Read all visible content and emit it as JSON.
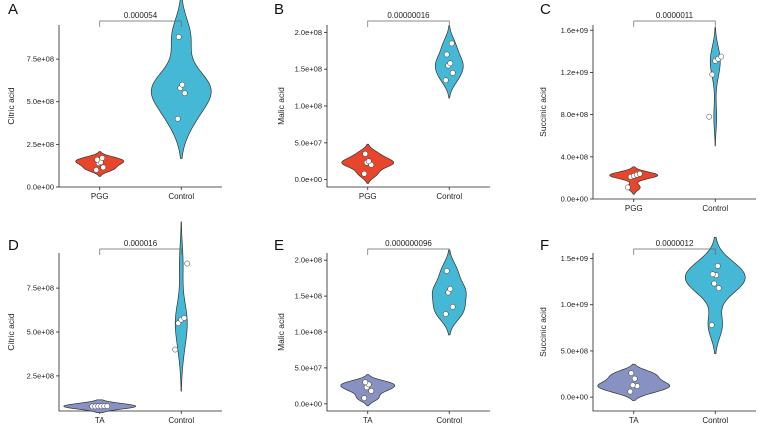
{
  "colors": {
    "PGG": "#e8452d",
    "TA": "#8791c2",
    "Control": "#45b8d6"
  },
  "chart_data": [
    {
      "panel": "A",
      "type": "violin",
      "ylabel": "Citric acid",
      "categories": [
        "PGG",
        "Control"
      ],
      "ylim": [
        0,
        950000000
      ],
      "yticks": [
        {
          "value": 0,
          "label": "0.0e+00"
        },
        {
          "value": 250000000,
          "label": "2.5e+08"
        },
        {
          "value": 500000000,
          "label": "5.0e+08"
        },
        {
          "value": 750000000,
          "label": "7.5e+08"
        }
      ],
      "pvalue": "0.000054",
      "series": [
        {
          "name": "PGG",
          "color": "#e8452d",
          "points": [
            100000000,
            115000000,
            140000000,
            145000000,
            160000000,
            170000000
          ]
        },
        {
          "name": "Control",
          "color": "#45b8d6",
          "points": [
            400000000,
            550000000,
            580000000,
            600000000,
            880000000
          ]
        }
      ]
    },
    {
      "panel": "B",
      "type": "violin",
      "ylabel": "Malic acid",
      "categories": [
        "PGG",
        "Control"
      ],
      "ylim": [
        -10000000,
        210000000
      ],
      "yticks": [
        {
          "value": 0,
          "label": "0.0e+00"
        },
        {
          "value": 50000000,
          "label": "5.0e+07"
        },
        {
          "value": 100000000,
          "label": "1.0e+08"
        },
        {
          "value": 150000000,
          "label": "1.5e+08"
        },
        {
          "value": 200000000,
          "label": "2.0e+08"
        }
      ],
      "pvalue": "0.00000016",
      "series": [
        {
          "name": "PGG",
          "color": "#e8452d",
          "points": [
            8000000,
            20000000,
            23000000,
            25000000,
            35000000
          ]
        },
        {
          "name": "Control",
          "color": "#45b8d6",
          "points": [
            135000000,
            145000000,
            155000000,
            158000000,
            170000000,
            185000000
          ]
        }
      ]
    },
    {
      "panel": "C",
      "type": "violin",
      "ylabel": "Succinic acid",
      "categories": [
        "PGG",
        "Control"
      ],
      "ylim": [
        0,
        1650000000
      ],
      "yticks": [
        {
          "value": 0,
          "label": "0.0e+00"
        },
        {
          "value": 400000000,
          "label": "4.0e+08"
        },
        {
          "value": 800000000,
          "label": "8.0e+08"
        },
        {
          "value": 1200000000,
          "label": "1.2e+09"
        },
        {
          "value": 1600000000,
          "label": "1.6e+09"
        }
      ],
      "pvalue": "0.0000011",
      "series": [
        {
          "name": "PGG",
          "color": "#e8452d",
          "points": [
            110000000,
            210000000,
            220000000,
            230000000,
            240000000
          ]
        },
        {
          "name": "Control",
          "color": "#45b8d6",
          "points": [
            780000000,
            1180000000,
            1310000000,
            1330000000,
            1350000000
          ]
        }
      ]
    },
    {
      "panel": "D",
      "type": "violin",
      "ylabel": "Citric acid",
      "categories": [
        "TA",
        "Control"
      ],
      "ylim": [
        50000000,
        950000000
      ],
      "yticks": [
        {
          "value": 250000000,
          "label": "2.5e+08"
        },
        {
          "value": 500000000,
          "label": "5.0e+08"
        },
        {
          "value": 750000000,
          "label": "7.5e+08"
        }
      ],
      "pvalue": "0.000016",
      "series": [
        {
          "name": "TA",
          "color": "#8791c2",
          "points": [
            76000000,
            76000000,
            77000000,
            77000000,
            78000000,
            78000000
          ]
        },
        {
          "name": "Control",
          "color": "#45b8d6",
          "points": [
            400000000,
            550000000,
            570000000,
            580000000,
            890000000
          ]
        }
      ]
    },
    {
      "panel": "E",
      "type": "violin",
      "ylabel": "Malic acid",
      "categories": [
        "TA",
        "Control"
      ],
      "ylim": [
        -10000000,
        210000000
      ],
      "yticks": [
        {
          "value": 0,
          "label": "0.0e+00"
        },
        {
          "value": 50000000,
          "label": "5.0e+07"
        },
        {
          "value": 100000000,
          "label": "1.0e+08"
        },
        {
          "value": 150000000,
          "label": "1.5e+08"
        },
        {
          "value": 200000000,
          "label": "2.0e+08"
        }
      ],
      "pvalue": "0.000000096",
      "series": [
        {
          "name": "TA",
          "color": "#8791c2",
          "points": [
            8000000,
            18000000,
            23000000,
            27000000,
            30000000
          ]
        },
        {
          "name": "Control",
          "color": "#45b8d6",
          "points": [
            125000000,
            135000000,
            155000000,
            160000000,
            185000000
          ]
        }
      ]
    },
    {
      "panel": "F",
      "type": "violin",
      "ylabel": "Succinic acid",
      "categories": [
        "TA",
        "Control"
      ],
      "ylim": [
        -150000000,
        1560000000
      ],
      "yticks": [
        {
          "value": 0,
          "label": "0.0e+00"
        },
        {
          "value": 500000000,
          "label": "5.0e+08"
        },
        {
          "value": 1000000000,
          "label": "1.0e+09"
        },
        {
          "value": 1500000000,
          "label": "1.5e+09"
        }
      ],
      "pvalue": "0.0000012",
      "series": [
        {
          "name": "TA",
          "color": "#8791c2",
          "points": [
            60000000,
            120000000,
            130000000,
            200000000,
            260000000
          ]
        },
        {
          "name": "Control",
          "color": "#45b8d6",
          "points": [
            780000000,
            1180000000,
            1230000000,
            1320000000,
            1330000000,
            1420000000
          ]
        }
      ]
    }
  ]
}
